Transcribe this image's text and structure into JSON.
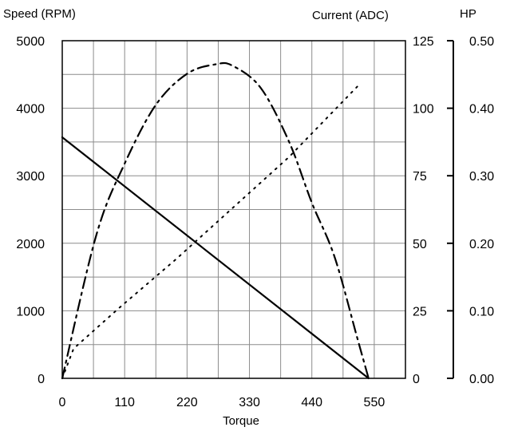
{
  "chart_data": {
    "type": "line",
    "title": "",
    "xlabel": "Torque",
    "xlim": [
      0,
      605
    ],
    "x_ticks": [
      0,
      110,
      220,
      330,
      440,
      550
    ],
    "y_axes": [
      {
        "id": "speed",
        "label": "Speed (RPM)",
        "ylim": [
          0,
          5000
        ],
        "ticks": [
          0,
          1000,
          2000,
          3000,
          4000,
          5000
        ],
        "position": "left"
      },
      {
        "id": "current",
        "label": "Current (ADC)",
        "ylim": [
          0,
          125
        ],
        "ticks": [
          0,
          25,
          50,
          75,
          100,
          125
        ],
        "position": "right"
      },
      {
        "id": "hp",
        "label": "HP",
        "ylim": [
          0,
          0.5
        ],
        "ticks": [
          "0.00",
          "0.10",
          "0.20",
          "0.30",
          "0.40",
          "0.50"
        ],
        "position": "far-right"
      }
    ],
    "grid": true,
    "legend": "none",
    "series": [
      {
        "axis": "speed",
        "style": "solid",
        "color": "#000000",
        "x": [
          0,
          540
        ],
        "y": [
          3570,
          0
        ]
      },
      {
        "axis": "current",
        "style": "dotted",
        "color": "#000000",
        "x": [
          0,
          20,
          100,
          200,
          300,
          400,
          520
        ],
        "y": [
          0,
          11,
          26,
          44,
          63,
          82,
          108
        ]
      },
      {
        "axis": "hp",
        "style": "dash-dot",
        "color": "#000000",
        "x": [
          0,
          60,
          110,
          165,
          220,
          270,
          300,
          350,
          400,
          440,
          480,
          520,
          540
        ],
        "y": [
          0,
          0.212,
          0.318,
          0.405,
          0.451,
          0.465,
          0.463,
          0.43,
          0.35,
          0.26,
          0.18,
          0.06,
          0
        ]
      }
    ]
  }
}
